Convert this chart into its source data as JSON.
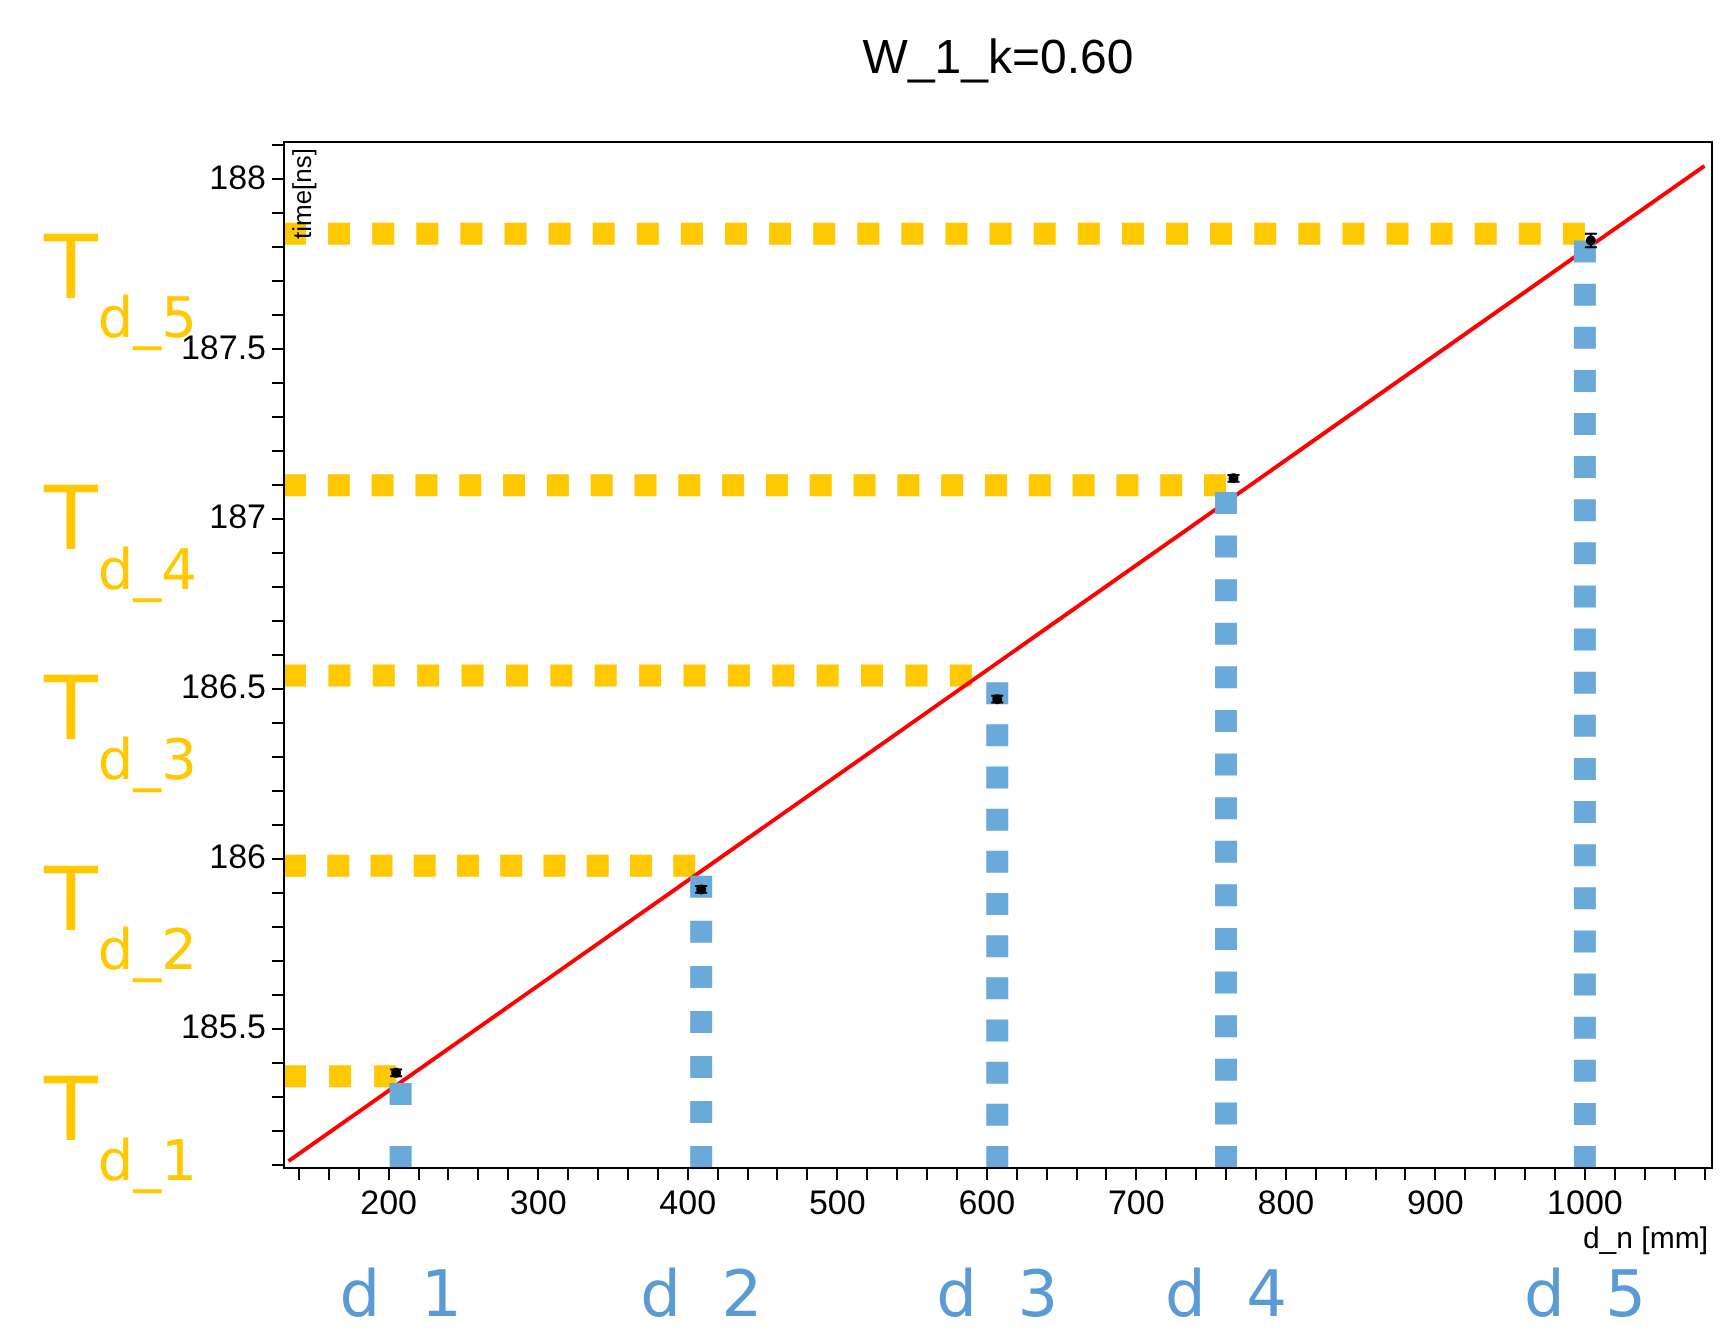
{
  "chart_data": {
    "type": "scatter",
    "title": "W_1_k=0.60",
    "xlabel": "d_n [mm]",
    "ylabel": "time[ns]",
    "xlim": [
      130,
      1085
    ],
    "ylim": [
      185.09,
      188.11
    ],
    "xticks": [
      {
        "value": 140,
        "label": null
      },
      {
        "value": 160,
        "label": null
      },
      {
        "value": 180,
        "label": null
      },
      200,
      {
        "value": 220,
        "label": null
      },
      {
        "value": 240,
        "label": null
      },
      {
        "value": 260,
        "label": null
      },
      {
        "value": 280,
        "label": null
      },
      300,
      {
        "value": 320,
        "label": null
      },
      {
        "value": 340,
        "label": null
      },
      {
        "value": 360,
        "label": null
      },
      {
        "value": 380,
        "label": null
      },
      400,
      {
        "value": 420,
        "label": null
      },
      {
        "value": 440,
        "label": null
      },
      {
        "value": 460,
        "label": null
      },
      {
        "value": 480,
        "label": null
      },
      500,
      {
        "value": 520,
        "label": null
      },
      {
        "value": 540,
        "label": null
      },
      {
        "value": 560,
        "label": null
      },
      {
        "value": 580,
        "label": null
      },
      600,
      {
        "value": 620,
        "label": null
      },
      {
        "value": 640,
        "label": null
      },
      {
        "value": 660,
        "label": null
      },
      {
        "value": 680,
        "label": null
      },
      700,
      {
        "value": 720,
        "label": null
      },
      {
        "value": 740,
        "label": null
      },
      {
        "value": 760,
        "label": null
      },
      {
        "value": 780,
        "label": null
      },
      800,
      {
        "value": 820,
        "label": null
      },
      {
        "value": 840,
        "label": null
      },
      {
        "value": 860,
        "label": null
      },
      {
        "value": 880,
        "label": null
      },
      900,
      {
        "value": 920,
        "label": null
      },
      {
        "value": 940,
        "label": null
      },
      {
        "value": 960,
        "label": null
      },
      {
        "value": 980,
        "label": null
      },
      1000,
      {
        "value": 1020,
        "label": null
      },
      {
        "value": 1040,
        "label": null
      },
      {
        "value": 1060,
        "label": null
      },
      {
        "value": 1080,
        "label": null
      }
    ],
    "yticks": [
      {
        "value": 185.1,
        "label": null
      },
      {
        "value": 185.2,
        "label": null
      },
      {
        "value": 185.3,
        "label": null
      },
      {
        "value": 185.4,
        "label": null
      },
      185.5,
      {
        "value": 185.6,
        "label": null
      },
      {
        "value": 185.7,
        "label": null
      },
      {
        "value": 185.8,
        "label": null
      },
      {
        "value": 185.9,
        "label": null
      },
      186,
      {
        "value": 186.1,
        "label": null
      },
      {
        "value": 186.2,
        "label": null
      },
      {
        "value": 186.3,
        "label": null
      },
      {
        "value": 186.4,
        "label": null
      },
      186.5,
      {
        "value": 186.6,
        "label": null
      },
      {
        "value": 186.7,
        "label": null
      },
      {
        "value": 186.8,
        "label": null
      },
      {
        "value": 186.9,
        "label": null
      },
      187,
      {
        "value": 187.1,
        "label": null
      },
      {
        "value": 187.2,
        "label": null
      },
      {
        "value": 187.3,
        "label": null
      },
      {
        "value": 187.4,
        "label": null
      },
      187.5,
      {
        "value": 187.6,
        "label": null
      },
      {
        "value": 187.7,
        "label": null
      },
      {
        "value": 187.8,
        "label": null
      },
      {
        "value": 187.9,
        "label": null
      },
      188,
      {
        "value": 188.1,
        "label": null
      }
    ],
    "grid": false,
    "legend": false,
    "series": [
      {
        "type": "line",
        "color": "#ffc800",
        "line_style": "dotted",
        "marker": "none",
        "x": [
          130,
          205
        ],
        "values": [
          185.36,
          185.36
        ]
      },
      {
        "type": "line",
        "color": "#ffc800",
        "line_style": "dotted",
        "marker": "none",
        "x": [
          130,
          405
        ],
        "values": [
          185.98,
          185.98
        ]
      },
      {
        "type": "line",
        "color": "#ffc800",
        "line_style": "dotted",
        "marker": "none",
        "x": [
          130,
          590
        ],
        "values": [
          186.54,
          186.54
        ]
      },
      {
        "type": "line",
        "color": "#ffc800",
        "line_style": "dotted",
        "marker": "none",
        "x": [
          130,
          760
        ],
        "values": [
          187.1,
          187.1
        ]
      },
      {
        "type": "line",
        "color": "#ffc800",
        "line_style": "dotted",
        "marker": "none",
        "x": [
          130,
          1000
        ],
        "values": [
          187.84,
          187.84
        ]
      },
      {
        "type": "line",
        "color": "#ff0000",
        "line_style": "solid",
        "marker": "none",
        "x": [
          133,
          1080
        ],
        "values": [
          185.11,
          188.04
        ]
      },
      {
        "type": "line",
        "color": "#6aaada",
        "line_style": "dotted",
        "marker": "none",
        "x": [
          208,
          208
        ],
        "values": [
          185.09,
          185.34
        ]
      },
      {
        "type": "line",
        "color": "#6aaada",
        "line_style": "dotted",
        "marker": "none",
        "x": [
          409,
          409
        ],
        "values": [
          185.09,
          185.95
        ]
      },
      {
        "type": "line",
        "color": "#6aaada",
        "line_style": "dotted",
        "marker": "none",
        "x": [
          607,
          607
        ],
        "values": [
          185.09,
          186.52
        ]
      },
      {
        "type": "line",
        "color": "#6aaada",
        "line_style": "dotted",
        "marker": "none",
        "x": [
          760,
          760
        ],
        "values": [
          185.09,
          187.08
        ]
      },
      {
        "type": "line",
        "color": "#6aaada",
        "line_style": "dotted",
        "marker": "none",
        "x": [
          1000,
          1000
        ],
        "values": [
          185.09,
          187.82
        ]
      },
      {
        "color": "#000000",
        "marker": "circle",
        "x": [
          205,
          409,
          607,
          765,
          1004
        ],
        "values": [
          185.37,
          185.91,
          186.47,
          187.12,
          187.82
        ],
        "errors": [
          0.01,
          0.01,
          0.01,
          0.01,
          0.02
        ]
      }
    ],
    "annotations": [
      "T$_{d_1}$",
      "T$_{d_2}$",
      "T$_{d_3}$",
      "T$_{d_4}$",
      "T$_{d_5}$",
      "d  1",
      "d  2",
      "d  3",
      "d  4",
      "d  5"
    ]
  }
}
